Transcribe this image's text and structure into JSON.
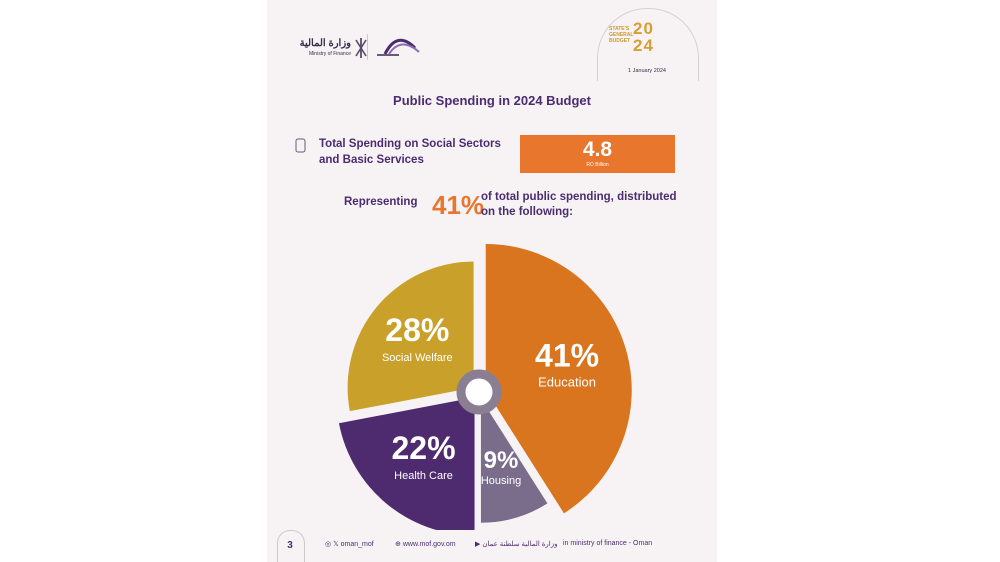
{
  "header": {
    "ministry_ar": "وزارة المالية",
    "ministry_en": "Ministry of Finance",
    "badge_line1": "STATE'S",
    "badge_line2": "GENERAL",
    "badge_line3": "BUDGET",
    "badge_year": "2024",
    "date": "1 January 2024"
  },
  "title": "Public Spending in 2024 Budget",
  "total": {
    "label_line1": "Total Spending on Social Sectors",
    "label_line2": "and Basic Services",
    "value": "4.8",
    "unit": "RO Billion"
  },
  "representing": {
    "prefix": "Representing",
    "percent": "41%",
    "suffix_line1": "of total public spending, distributed",
    "suffix_line2": "on the following:"
  },
  "chart_data": {
    "type": "pie",
    "categories": [
      "Education",
      "Housing",
      "Health Care",
      "Social Welfare"
    ],
    "values": [
      41,
      9,
      22,
      28
    ],
    "labels": [
      "41%",
      "9%",
      "22%",
      "28%"
    ],
    "colors": [
      "#d9741f",
      "#7a6d8c",
      "#4e2a6e",
      "#c9a02a"
    ]
  },
  "footer": {
    "page": "3",
    "social": "oman_mof",
    "website": "www.mof.gov.om",
    "arabic": "وزارة المالية سلطنة عمان",
    "linkedin": "ministry of finance - Oman"
  }
}
